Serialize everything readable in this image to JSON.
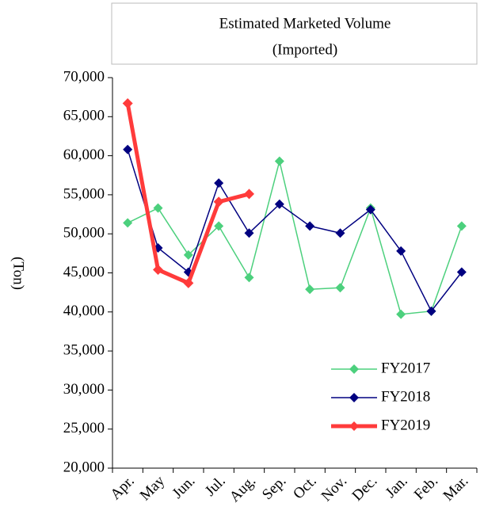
{
  "chart_data": {
    "type": "line",
    "title": [
      "Estimated Marketed Volume",
      "(Imported)"
    ],
    "y_label": "(Ton)",
    "categories": [
      "Apr.",
      "May",
      "Jun.",
      "Jul.",
      "Aug.",
      "Sep.",
      "Oct.",
      "Nov.",
      "Dec.",
      "Jan.",
      "Feb.",
      "Mar."
    ],
    "series": [
      {
        "name": "FY2017",
        "color": "#4cd07d",
        "values": [
          51400,
          53300,
          47300,
          51000,
          44400,
          59300,
          42900,
          43100,
          53300,
          39700,
          40100,
          51000
        ]
      },
      {
        "name": "FY2018",
        "color": "#000080",
        "values": [
          60800,
          48200,
          45100,
          56500,
          50100,
          53800,
          51000,
          50100,
          53100,
          47800,
          40100,
          45100
        ]
      },
      {
        "name": "FY2019",
        "color": "#ff3b3b",
        "values": [
          66700,
          45400,
          43700,
          54100,
          55100,
          null,
          null,
          null,
          null,
          null,
          null,
          null
        ]
      }
    ],
    "ylim": [
      20000,
      70000
    ],
    "yticks": [
      {
        "value": 20000,
        "label": "20,000"
      },
      {
        "value": 25000,
        "label": "25,000"
      },
      {
        "value": 30000,
        "label": "30,000"
      },
      {
        "value": 35000,
        "label": "35,000"
      },
      {
        "value": 40000,
        "label": "40,000"
      },
      {
        "value": 45000,
        "label": "45,000"
      },
      {
        "value": 50000,
        "label": "50,000"
      },
      {
        "value": 55000,
        "label": "55,000"
      },
      {
        "value": 60000,
        "label": "60,000"
      },
      {
        "value": 65000,
        "label": "65,000"
      },
      {
        "value": 70000,
        "label": "70,000"
      }
    ],
    "legend": "lower right"
  }
}
